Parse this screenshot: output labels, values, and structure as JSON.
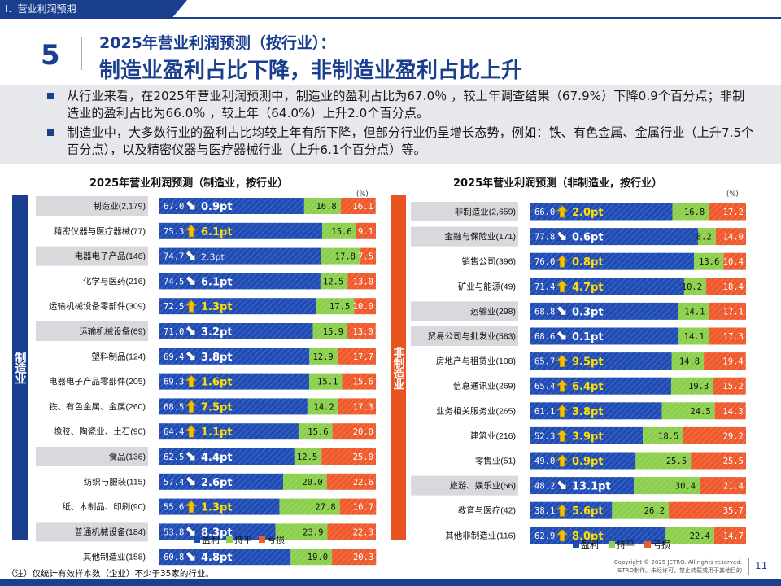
{
  "header": {
    "section": "I．营业利润预期",
    "slide_number": "5",
    "title_line1": "2025年营业利润预测（按行业）：",
    "title_line2": "制造业盈利占比下降，非制造业盈利占比上升"
  },
  "bullets": [
    "从行业来看，在2025年营业利润预测中，制造业的盈利占比为67.0％ ，较上年调查结果（67.9%）下降0.9个百分点；非制造业的盈利占比为66.0％ ，较上年（64.0%）上升2.0个百分点。",
    "制造业中，大多数行业的盈利占比均较上年有所下降，但部分行业仍呈增长态势，例如：铁、有色金属、金属行业（上升7.5个百分点），以及精密仪器与医疗器械行业（上升6.1个百分点）等。"
  ],
  "colors": {
    "profit": "#1f4bb5",
    "flat": "#8ccf4d",
    "loss": "#ef5a2c",
    "up_arrow": "#f5c400",
    "brand": "#1a3f8f",
    "nonmfg_band": "#e8541f",
    "label_shade": "#d9d9dd"
  },
  "chart_data": [
    {
      "type": "bar",
      "stacked": true,
      "orientation": "horizontal",
      "title": "2025年营业利润预测（制造业，按行业）",
      "unit": "(%)",
      "side_label": "制造业",
      "legend": [
        "盈利",
        "持平",
        "亏损"
      ],
      "categories": [
        "制造业(2,179)",
        "精密仪器与医疗器械(77)",
        "电器电子产品(146)",
        "化学与医药(216)",
        "运输机械设备零部件(309)",
        "运输机械设备(69)",
        "塑料制品(124)",
        "电器电子产品零部件(205)",
        "铁、有色金属、金属(260)",
        "橡胶、陶瓷业、土石(90)",
        "食品(136)",
        "纺织与服装(115)",
        "纸、木制品、印刷(90)",
        "普通机械设备(184)",
        "其他制造业(158)"
      ],
      "series": [
        {
          "name": "盈利",
          "values": [
            67.0,
            75.3,
            74.7,
            74.5,
            72.5,
            71.0,
            69.4,
            69.3,
            68.5,
            64.4,
            62.5,
            57.4,
            55.6,
            53.8,
            60.8
          ],
          "labels": [
            "67.0",
            "75.3",
            "74.7",
            "74.5",
            "72.5",
            "71.0",
            "69.4",
            "69.3",
            "68.5",
            "64.4",
            "62.5",
            "57.4",
            "55.6",
            "53.8",
            "60.8"
          ]
        },
        {
          "name": "持平",
          "values": [
            16.8,
            15.6,
            17.8,
            12.5,
            17.5,
            15.9,
            12.9,
            15.1,
            14.2,
            15.6,
            12.5,
            20.0,
            27.8,
            23.9,
            19.0
          ],
          "labels": [
            "16.8",
            "15.6",
            "17.8",
            "12.5",
            "17.5",
            "15.9",
            "12.9",
            "15.1",
            "14.2",
            "15.6",
            "12.5",
            "20.0",
            "27.8",
            "23.9",
            "19.0"
          ]
        },
        {
          "name": "亏损",
          "values": [
            16.1,
            9.1,
            7.5,
            13.0,
            10.0,
            13.0,
            17.7,
            15.6,
            17.3,
            20.0,
            25.0,
            22.6,
            16.7,
            22.3,
            20.3
          ],
          "labels": [
            "16.1",
            "9.1",
            "7.5",
            "13.0",
            "10.0",
            "13.0",
            "17.7",
            "15.6",
            "17.3",
            "20.0",
            "25.0",
            "22.6",
            "16.7",
            "22.3",
            "20.3"
          ]
        }
      ],
      "change": [
        "0.9pt",
        "6.1pt",
        "2.3pt",
        "6.1pt",
        "1.3pt",
        "3.2pt",
        "3.8pt",
        "1.6pt",
        "7.5pt",
        "1.1pt",
        "4.4pt",
        "2.6pt",
        "1.3pt",
        "8.3pt",
        "4.8pt"
      ],
      "direction": [
        "down",
        "up",
        "down",
        "down",
        "up",
        "down",
        "down",
        "up",
        "up",
        "up",
        "down",
        "down",
        "up",
        "down",
        "down"
      ],
      "shaded": [
        true,
        false,
        true,
        false,
        false,
        true,
        false,
        false,
        false,
        false,
        true,
        false,
        false,
        true,
        false
      ],
      "xlim": [
        0,
        100
      ]
    },
    {
      "type": "bar",
      "stacked": true,
      "orientation": "horizontal",
      "title": "2025年营业利润预测（非制造业，按行业）",
      "unit": "(%)",
      "side_label": "非制造业",
      "legend": [
        "盈利",
        "持平",
        "亏损"
      ],
      "categories": [
        "非制造业(2,659)",
        "金融与保险业(171)",
        "销售公司(396)",
        "矿业与能源(49)",
        "运输业(298)",
        "贸易公司与批发业(583)",
        "房地产与租赁业(108)",
        "信息通讯业(269)",
        "业务相关服务业(265)",
        "建筑业(216)",
        "零售业(51)",
        "旅游、娱乐业(56)",
        "教育与医疗(42)",
        "其他非制造业(116)"
      ],
      "series": [
        {
          "name": "盈利",
          "values": [
            66.0,
            77.8,
            76.0,
            71.4,
            68.8,
            68.6,
            65.7,
            65.4,
            61.1,
            52.3,
            49.0,
            48.2,
            38.1,
            62.9
          ],
          "labels": [
            "66.0",
            "77.8",
            "76.0",
            "71.4",
            "68.8",
            "68.6",
            "65.7",
            "65.4",
            "61.1",
            "52.3",
            "49.0",
            "48.2",
            "38.1",
            "62.9"
          ]
        },
        {
          "name": "持平",
          "values": [
            16.8,
            8.2,
            13.6,
            10.2,
            14.1,
            14.1,
            14.8,
            19.3,
            24.5,
            18.5,
            25.5,
            30.4,
            26.2,
            22.4
          ],
          "labels": [
            "16.8",
            "8.2",
            "13.6",
            "10.2",
            "14.1",
            "14.1",
            "14.8",
            "19.3",
            "24.5",
            "18.5",
            "25.5",
            "30.4",
            "26.2",
            "22.4"
          ]
        },
        {
          "name": "亏损",
          "values": [
            17.2,
            14.0,
            10.4,
            18.4,
            17.1,
            17.3,
            19.4,
            15.2,
            14.3,
            29.2,
            25.5,
            21.4,
            35.7,
            14.7
          ],
          "labels": [
            "17.2",
            "14.0",
            "10.4",
            "18.4",
            "17.1",
            "17.3",
            "19.4",
            "15.2",
            "14.3",
            "29.2",
            "25.5",
            "21.4",
            "35.7",
            "14.7"
          ]
        }
      ],
      "change": [
        "2.0pt",
        "0.6pt",
        "0.8pt",
        "4.7pt",
        "0.3pt",
        "0.1pt",
        "9.5pt",
        "6.4pt",
        "3.8pt",
        "3.9pt",
        "0.9pt",
        "13.1pt",
        "5.6pt",
        "8.0pt"
      ],
      "direction": [
        "up",
        "down",
        "up",
        "up",
        "down",
        "down",
        "up",
        "up",
        "up",
        "up",
        "up",
        "down",
        "up",
        "up"
      ],
      "shaded": [
        true,
        true,
        false,
        false,
        true,
        true,
        false,
        false,
        false,
        false,
        false,
        true,
        false,
        false
      ],
      "xlim": [
        0,
        100
      ]
    }
  ],
  "footer": {
    "note": "（注）仅统计有效样本数（企业）不少于35家的行业。",
    "copyright_line1": "Copyright © 2025 JETRO. All rights reserved.",
    "copyright_line2": "JETRO制作。未经许可，禁止转载或用于其他目的",
    "page": "11"
  }
}
